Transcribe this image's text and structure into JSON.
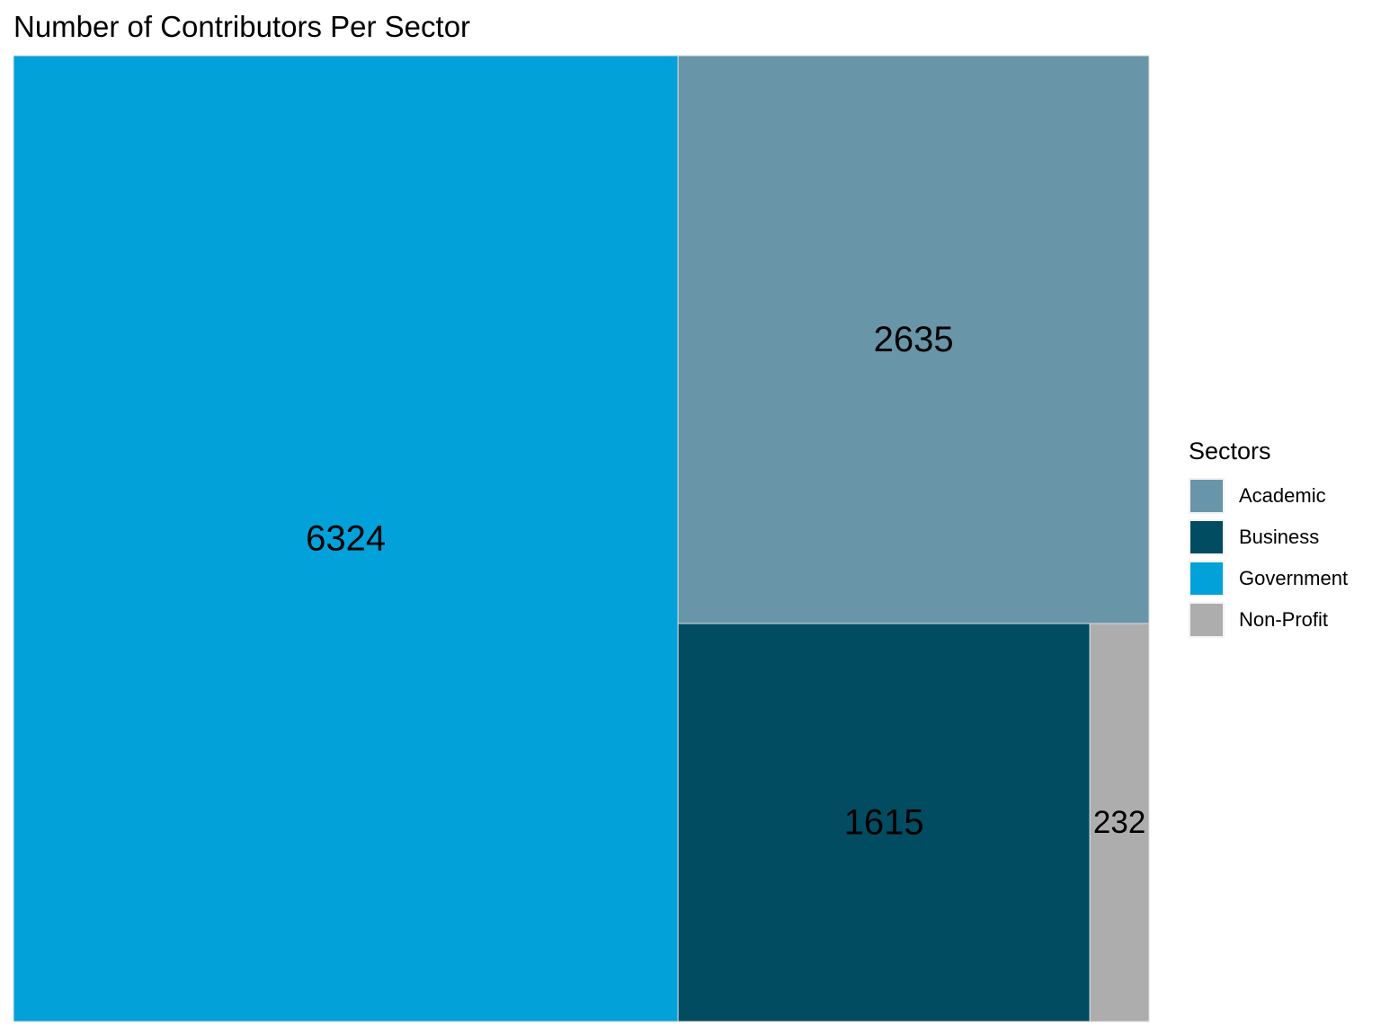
{
  "chart_data": {
    "type": "treemap",
    "title": "Number of Contributors Per Sector",
    "legend": {
      "title": "Sectors",
      "position": "right"
    },
    "categories": [
      "Academic",
      "Business",
      "Government",
      "Non-Profit"
    ],
    "values": [
      2635,
      1615,
      6324,
      232
    ],
    "colors": {
      "Academic": "#6995a8",
      "Business": "#024c62",
      "Government": "#02a1d9",
      "Non-Profit": "#adadad"
    },
    "label_color": "#000000",
    "border_color": "#dddddd"
  }
}
